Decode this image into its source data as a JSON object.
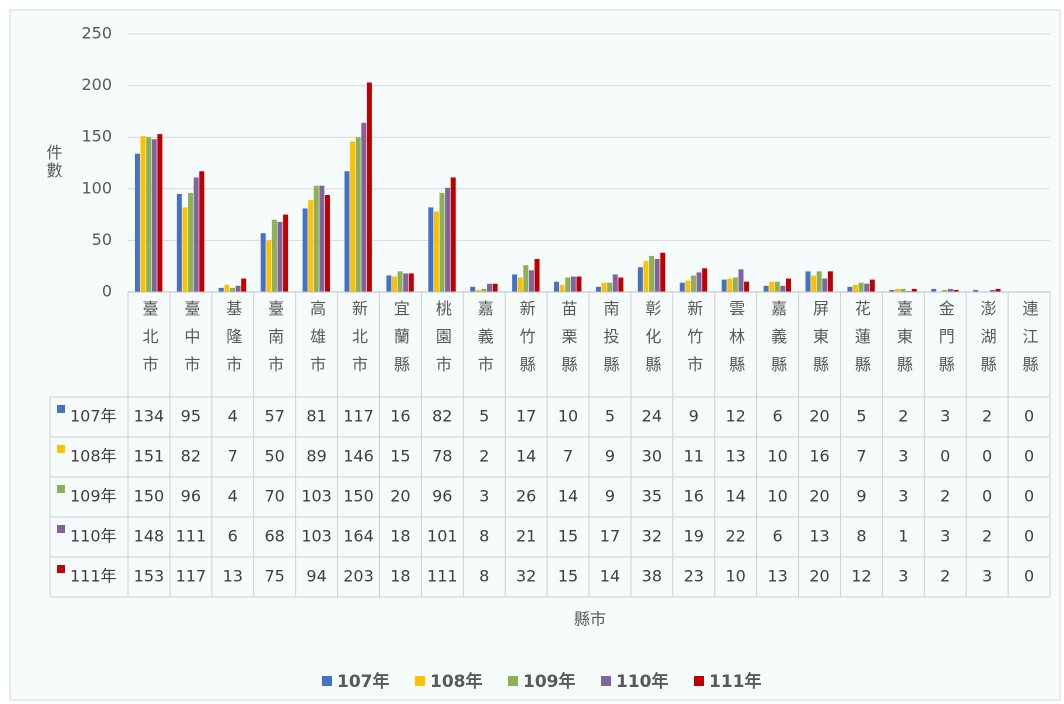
{
  "chart_data": {
    "type": "bar",
    "y_label": "件數",
    "x_label": "縣市",
    "categories": [
      "臺北市",
      "臺中市",
      "基隆市",
      "臺南市",
      "高雄市",
      "新北市",
      "宜蘭縣",
      "桃園市",
      "嘉義市",
      "新竹縣",
      "苗栗縣",
      "南投縣",
      "彰化縣",
      "新竹市",
      "雲林縣",
      "嘉義縣",
      "屏東縣",
      "花蓮縣",
      "臺東縣",
      "金門縣",
      "澎湖縣",
      "連江縣"
    ],
    "series": [
      {
        "name": "107年",
        "color": "#4472c4",
        "values": [
          134,
          95,
          4,
          57,
          81,
          117,
          16,
          82,
          5,
          17,
          10,
          5,
          24,
          9,
          12,
          6,
          20,
          5,
          2,
          3,
          2,
          0
        ]
      },
      {
        "name": "108年",
        "color": "#ffc000",
        "values": [
          151,
          82,
          7,
          50,
          89,
          146,
          15,
          78,
          2,
          14,
          7,
          9,
          30,
          11,
          13,
          10,
          16,
          7,
          3,
          0,
          0,
          0
        ]
      },
      {
        "name": "109年",
        "color": "#8db252",
        "values": [
          150,
          96,
          4,
          70,
          103,
          150,
          20,
          96,
          3,
          26,
          14,
          9,
          35,
          16,
          14,
          10,
          20,
          9,
          3,
          2,
          0,
          0
        ]
      },
      {
        "name": "110年",
        "color": "#8064a2",
        "values": [
          148,
          111,
          6,
          68,
          103,
          164,
          18,
          101,
          8,
          21,
          15,
          17,
          32,
          19,
          22,
          6,
          13,
          8,
          1,
          3,
          2,
          0
        ]
      },
      {
        "name": "111年",
        "color": "#c00000",
        "values": [
          153,
          117,
          13,
          75,
          94,
          203,
          18,
          111,
          8,
          32,
          15,
          14,
          38,
          23,
          10,
          13,
          20,
          12,
          3,
          2,
          3,
          0
        ]
      }
    ],
    "ylim": [
      0,
      250
    ],
    "yticks": [
      0,
      50,
      100,
      150,
      200,
      250
    ],
    "grid": true
  }
}
